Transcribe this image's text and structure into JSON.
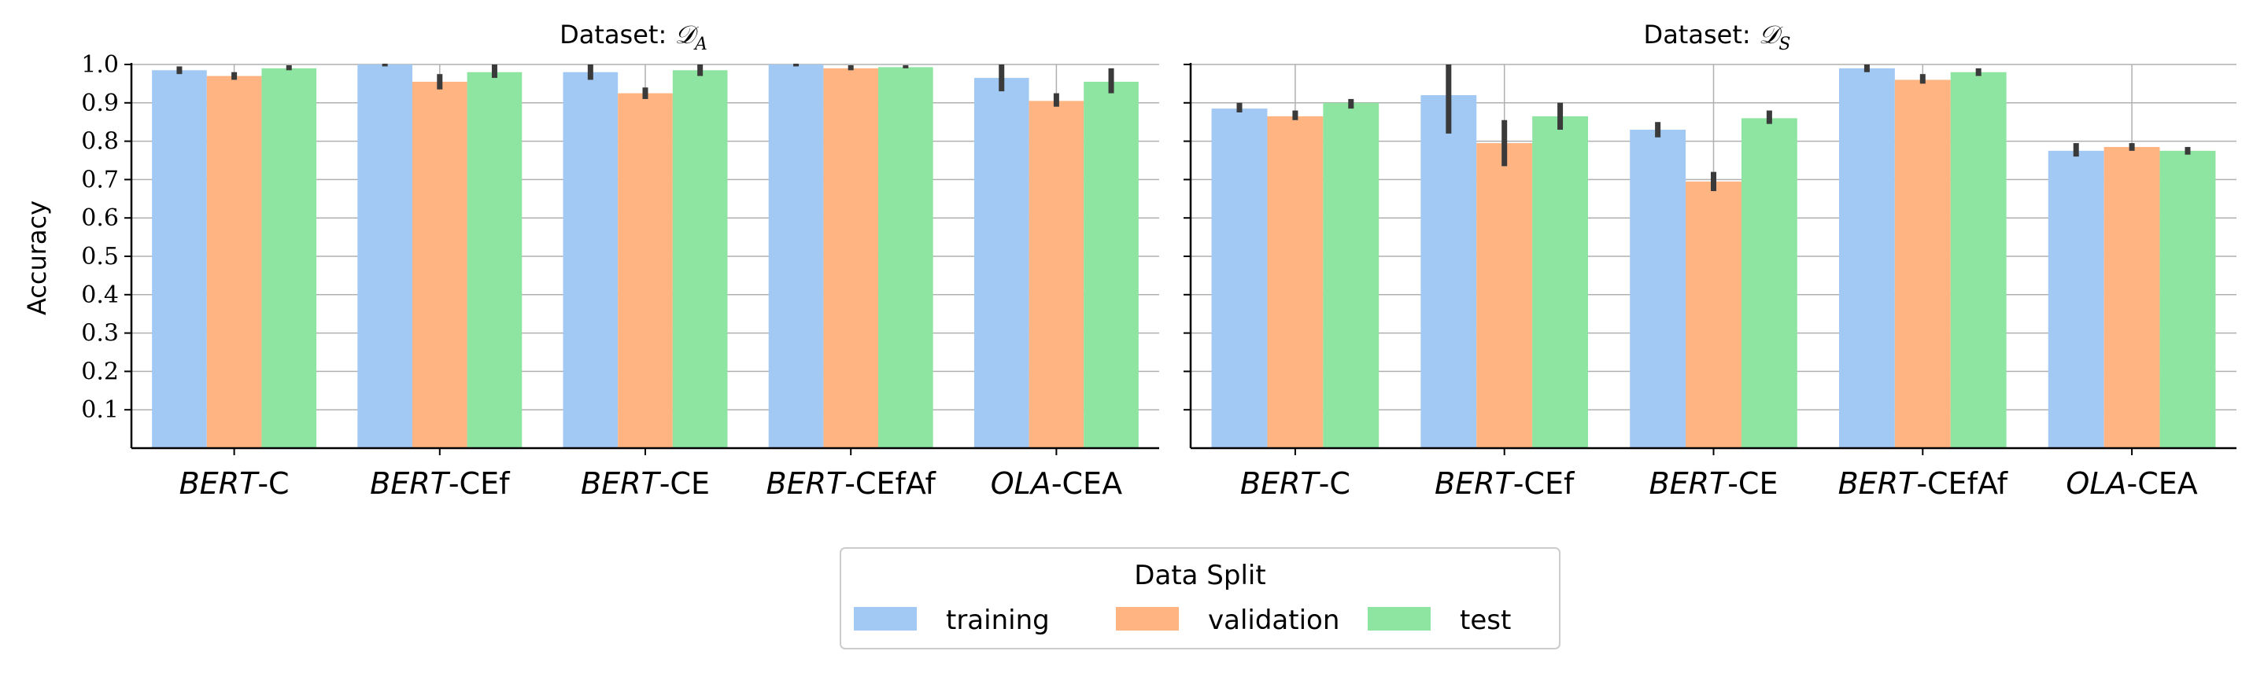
{
  "legend": {
    "title": "Data Split",
    "entries": [
      "training",
      "validation",
      "test"
    ],
    "placement": "bottom-center"
  },
  "colors": {
    "training": "#a1c9f4",
    "validation": "#ffb482",
    "test": "#8de5a1",
    "errorbar": "#3a3a3a",
    "grid": "#b0b0b0"
  },
  "chart_data": [
    {
      "type": "bar",
      "title_prefix": "Dataset: ",
      "title_math": "𝒟",
      "title_sub": "A",
      "ylabel": "Accuracy",
      "ylim": [
        0,
        1.0
      ],
      "yticks": [
        "0.1",
        "0.2",
        "0.3",
        "0.4",
        "0.5",
        "0.6",
        "0.7",
        "0.8",
        "0.9",
        "1.0"
      ],
      "grid": true,
      "categories": [
        {
          "model": "BERT",
          "suffix": "-C"
        },
        {
          "model": "BERT",
          "suffix": "-CEf"
        },
        {
          "model": "BERT",
          "suffix": "-CE"
        },
        {
          "model": "BERT",
          "suffix": "-CEfAf"
        },
        {
          "model": "OLA",
          "suffix": "-CEA"
        }
      ],
      "series": [
        {
          "name": "training",
          "values": [
            0.985,
            1.0,
            0.98,
            1.0,
            0.965
          ],
          "err_low": [
            0.975,
            0.995,
            0.96,
            0.995,
            0.93
          ],
          "err_high": [
            0.995,
            1.005,
            1.0,
            1.005,
            1.0
          ]
        },
        {
          "name": "validation",
          "values": [
            0.97,
            0.955,
            0.925,
            0.99,
            0.905
          ],
          "err_low": [
            0.96,
            0.935,
            0.91,
            0.985,
            0.89
          ],
          "err_high": [
            0.98,
            0.975,
            0.94,
            0.998,
            0.925
          ]
        },
        {
          "name": "test",
          "values": [
            0.99,
            0.98,
            0.985,
            0.993,
            0.955
          ],
          "err_low": [
            0.985,
            0.965,
            0.97,
            0.99,
            0.925
          ],
          "err_high": [
            0.998,
            1.0,
            1.0,
            0.998,
            0.99
          ]
        }
      ]
    },
    {
      "type": "bar",
      "title_prefix": "Dataset: ",
      "title_math": "𝒟",
      "title_sub": "S",
      "ylabel": "",
      "ylim": [
        0,
        1.0
      ],
      "yticks": [],
      "grid": true,
      "categories": [
        {
          "model": "BERT",
          "suffix": "-C"
        },
        {
          "model": "BERT",
          "suffix": "-CEf"
        },
        {
          "model": "BERT",
          "suffix": "-CE"
        },
        {
          "model": "BERT",
          "suffix": "-CEfAf"
        },
        {
          "model": "OLA",
          "suffix": "-CEA"
        }
      ],
      "series": [
        {
          "name": "training",
          "values": [
            0.885,
            0.92,
            0.83,
            0.99,
            0.775
          ],
          "err_low": [
            0.875,
            0.82,
            0.81,
            0.98,
            0.76
          ],
          "err_high": [
            0.9,
            1.0,
            0.85,
            1.0,
            0.795
          ]
        },
        {
          "name": "validation",
          "values": [
            0.865,
            0.795,
            0.695,
            0.96,
            0.785
          ],
          "err_low": [
            0.855,
            0.735,
            0.67,
            0.95,
            0.775
          ],
          "err_high": [
            0.88,
            0.855,
            0.72,
            0.975,
            0.795
          ]
        },
        {
          "name": "test",
          "values": [
            0.9,
            0.865,
            0.86,
            0.98,
            0.775
          ],
          "err_low": [
            0.885,
            0.83,
            0.845,
            0.97,
            0.765
          ],
          "err_high": [
            0.91,
            0.9,
            0.88,
            0.99,
            0.785
          ]
        }
      ]
    }
  ]
}
